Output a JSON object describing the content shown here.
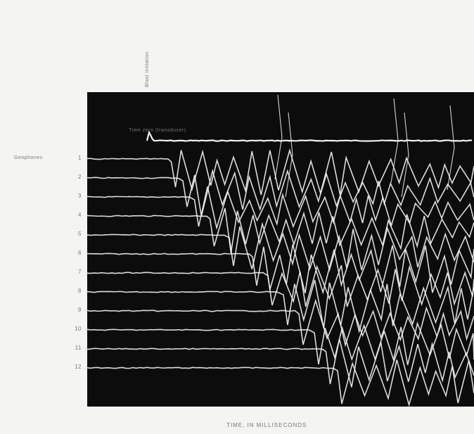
{
  "blast_label": "Blast initiation",
  "time_zero_label": "Time zero (transducer)",
  "geophone_label": "Geophones",
  "chart_data": {
    "type": "line",
    "title": "",
    "xlabel": "TIME, IN MILLISECONDS",
    "ylabel": "",
    "background": "#0c0c0c",
    "trace_color": "#f2f2f2",
    "time_zero_trace": {
      "label": ""
    },
    "series": [
      {
        "name": "1",
        "first_break": 0.21
      },
      {
        "name": "2",
        "first_break": 0.24
      },
      {
        "name": "3",
        "first_break": 0.27
      },
      {
        "name": "4",
        "first_break": 0.31
      },
      {
        "name": "5",
        "first_break": 0.36
      },
      {
        "name": "6",
        "first_break": 0.42
      },
      {
        "name": "7",
        "first_break": 0.46
      },
      {
        "name": "8",
        "first_break": 0.5
      },
      {
        "name": "9",
        "first_break": 0.54
      },
      {
        "name": "10",
        "first_break": 0.58
      },
      {
        "name": "11",
        "first_break": 0.61
      },
      {
        "name": "12",
        "first_break": 0.64
      }
    ]
  }
}
